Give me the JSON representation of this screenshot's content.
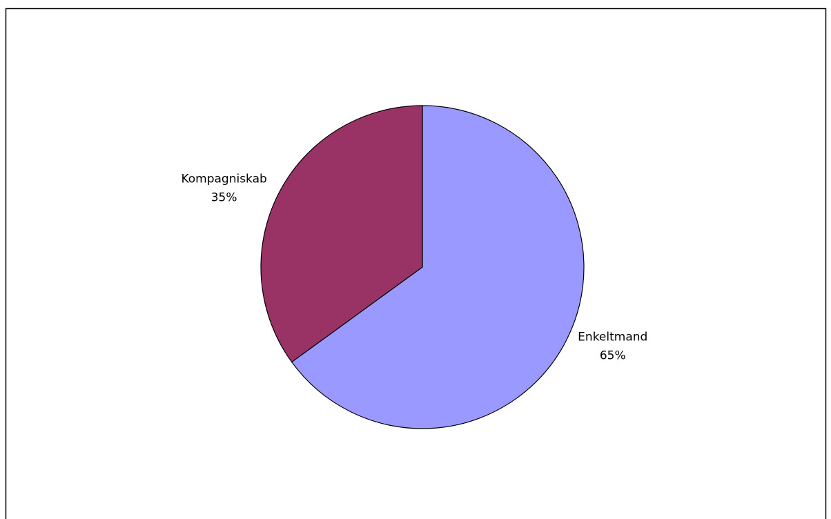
{
  "chart_data": {
    "type": "pie",
    "categories": [
      "Enkeltmand",
      "Kompagniskab"
    ],
    "values": [
      65,
      35
    ],
    "value_labels": [
      "65%",
      "35%"
    ],
    "colors": [
      "#9999ff",
      "#993366"
    ]
  }
}
